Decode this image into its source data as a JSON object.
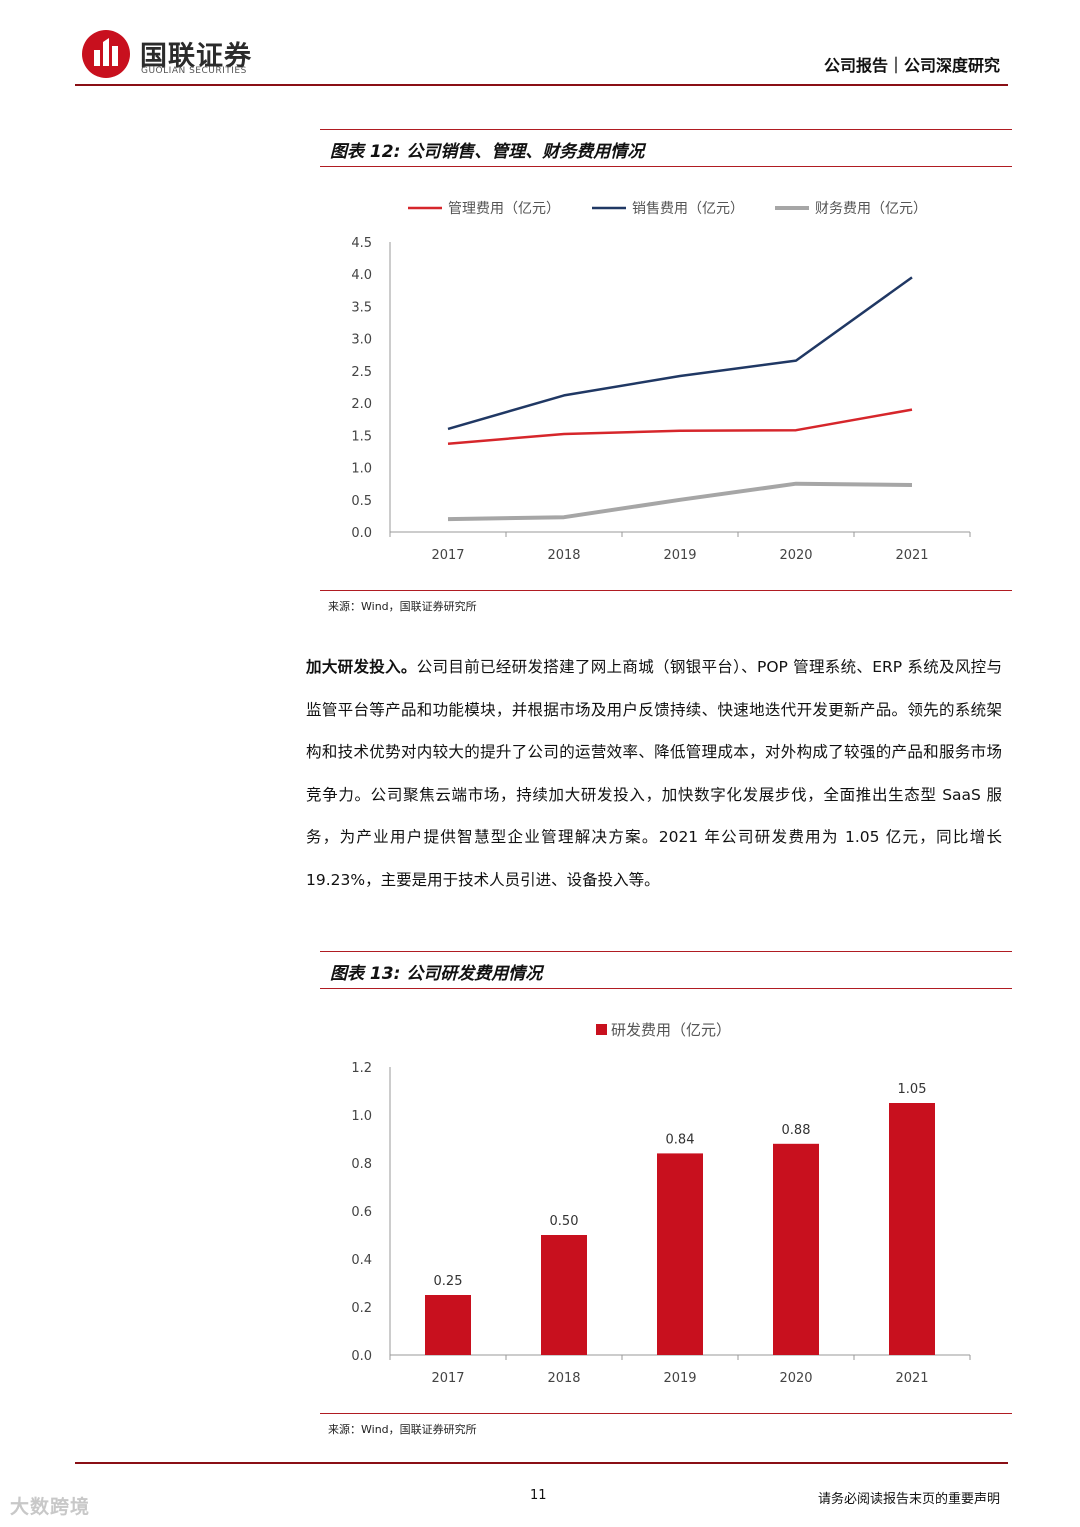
{
  "header": {
    "logo_cn": "国联证券",
    "logo_en": "GUOLIAN SECURITIES",
    "report_type": "公司报告｜公司深度研究",
    "brand_color": "#b01c22"
  },
  "figure12": {
    "title": "图表 12: 公司销售、管理、财务费用情况",
    "source": "来源：Wind，国联证券研究所"
  },
  "figure13": {
    "title": "图表 13: 公司研发费用情况",
    "source": "来源：Wind，国联证券研究所"
  },
  "paragraph": {
    "lead": "加大研发投入。",
    "body": "公司目前已经研发搭建了网上商城（钢银平台）、POP 管理系统、ERP 系统及风控与监管平台等产品和功能模块，并根据市场及用户反馈持续、快速地迭代开发更新产品。领先的系统架构和技术优势对内较大的提升了公司的运营效率、降低管理成本，对外构成了较强的产品和服务市场竞争力。公司聚焦云端市场，持续加大研发投入，加快数字化发展步伐，全面推出生态型 SaaS 服务，为产业用户提供智慧型企业管理解决方案。2021 年公司研发费用为 1.05 亿元，同比增长 19.23%，主要是用于技术人员引进、设备投入等。"
  },
  "footer": {
    "page_number": "11",
    "note": "请务必阅读报告末页的重要声明",
    "watermark": "大数跨境"
  },
  "chart_data": [
    {
      "type": "line",
      "categories": [
        "2017",
        "2018",
        "2019",
        "2020",
        "2021"
      ],
      "series": [
        {
          "name": "管理费用（亿元）",
          "values": [
            1.37,
            1.52,
            1.57,
            1.58,
            1.9
          ],
          "color": "#d6262b"
        },
        {
          "name": "销售费用（亿元）",
          "values": [
            1.6,
            2.12,
            2.42,
            2.66,
            3.95
          ],
          "color": "#203864"
        },
        {
          "name": "财务费用（亿元）",
          "values": [
            0.2,
            0.23,
            0.5,
            0.75,
            0.73
          ],
          "color": "#a6a6a6"
        }
      ],
      "ylim": [
        0,
        4.5
      ],
      "yticks": [
        "0.0",
        "0.5",
        "1.0",
        "1.5",
        "2.0",
        "2.5",
        "3.0",
        "3.5",
        "4.0",
        "4.5"
      ],
      "grid": false,
      "legend": "top"
    },
    {
      "type": "bar",
      "categories": [
        "2017",
        "2018",
        "2019",
        "2020",
        "2021"
      ],
      "series": [
        {
          "name": "研发费用（亿元）",
          "values": [
            0.25,
            0.5,
            0.84,
            0.88,
            1.05
          ],
          "color": "#c8101e"
        }
      ],
      "data_labels": [
        "0.25",
        "0.50",
        "0.84",
        "0.88",
        "1.05"
      ],
      "ylim": [
        0,
        1.2
      ],
      "yticks": [
        "0.0",
        "0.2",
        "0.4",
        "0.6",
        "0.8",
        "1.0",
        "1.2"
      ],
      "grid": false,
      "legend": "top"
    }
  ]
}
